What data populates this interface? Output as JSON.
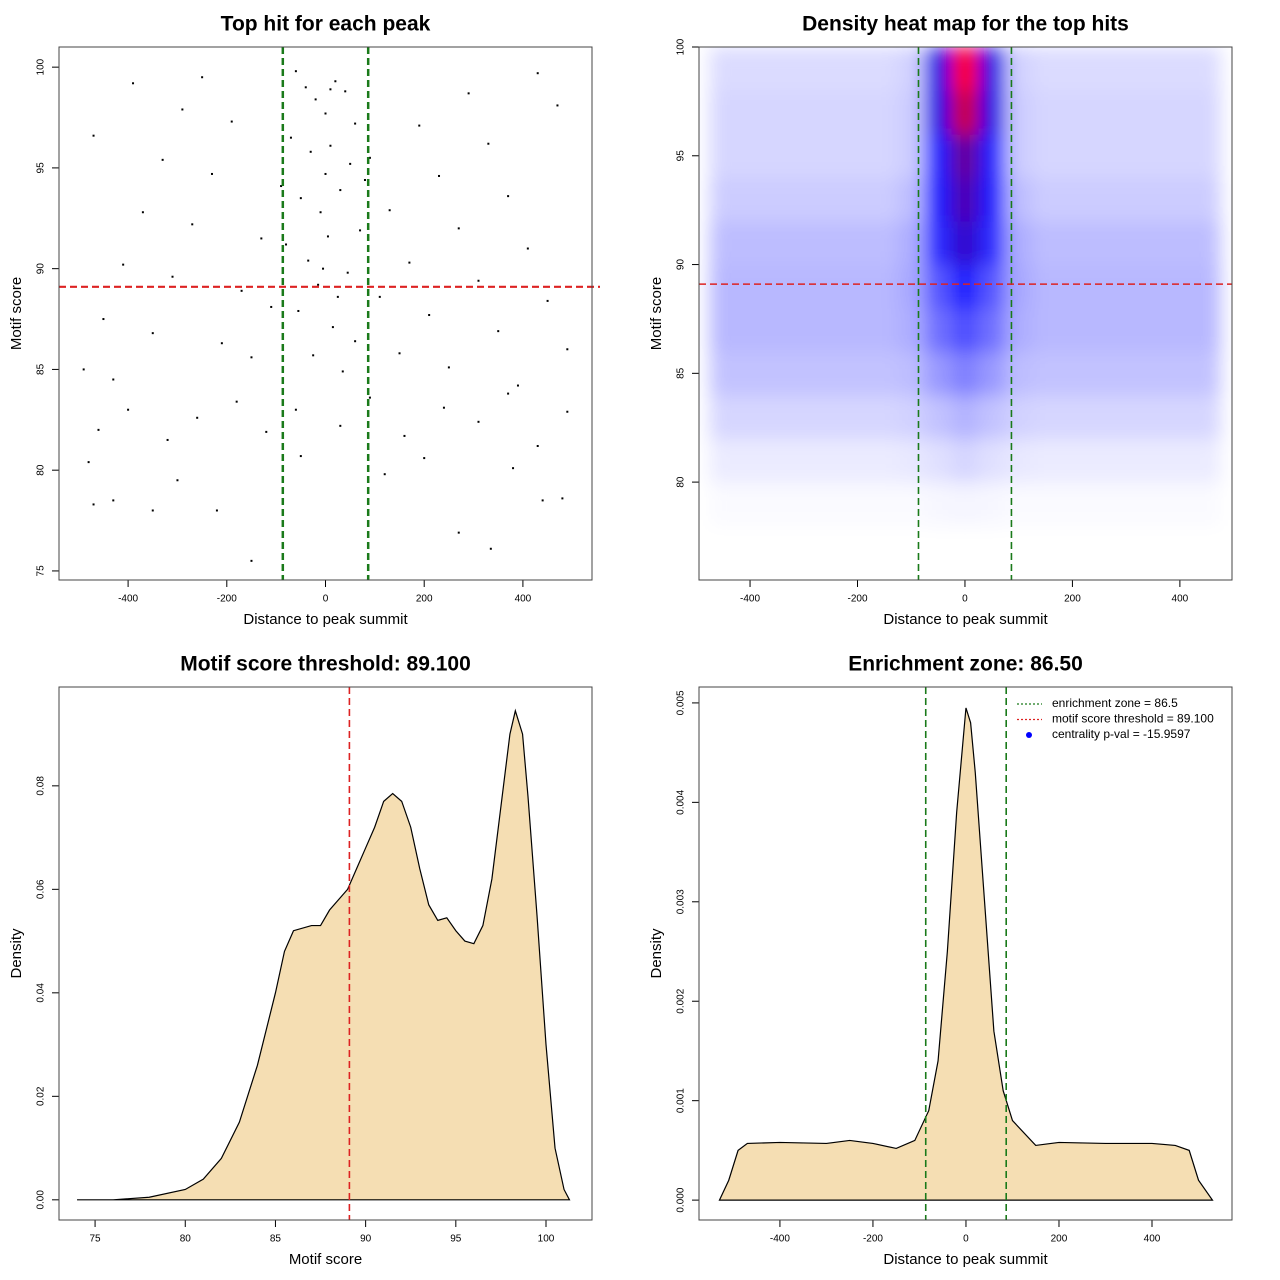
{
  "chart_data": [
    {
      "type": "scatter",
      "title": "Top hit for each peak",
      "xlabel": "Distance to peak summit",
      "ylabel": "Motif score",
      "color": "#000000",
      "x": [
        -470,
        -430,
        -350,
        -220,
        -150,
        270,
        335,
        440,
        480,
        -480,
        -300,
        120,
        380,
        -50,
        200,
        -460,
        -400,
        -320,
        -260,
        -180,
        -120,
        -60,
        30,
        90,
        160,
        240,
        310,
        370,
        430,
        490,
        -490,
        -450,
        -410,
        -370,
        -330,
        -290,
        -250,
        -210,
        -170,
        -130,
        -90,
        -470,
        -430,
        -390,
        -350,
        -310,
        -270,
        -230,
        -190,
        -150,
        -110,
        490,
        450,
        410,
        370,
        330,
        290,
        250,
        210,
        170,
        130,
        90,
        470,
        430,
        390,
        350,
        310,
        270,
        230,
        190,
        150,
        110,
        -60,
        -40,
        -20,
        0,
        20,
        40,
        60,
        -70,
        -30,
        10,
        50,
        80,
        -50,
        -10,
        30,
        70,
        -80,
        -35,
        5,
        45,
        -15,
        25,
        -55,
        15,
        60,
        -25,
        35,
        0,
        -5,
        10
      ],
      "y": [
        78.3,
        78.5,
        78,
        78,
        75.5,
        76.9,
        76.1,
        78.5,
        78.6,
        80.4,
        79.5,
        79.8,
        80.1,
        80.7,
        80.6,
        82,
        83,
        81.5,
        82.6,
        83.4,
        81.9,
        83,
        82.2,
        83.6,
        81.7,
        83.1,
        82.4,
        83.8,
        81.2,
        82.9,
        85,
        87.5,
        90.2,
        92.8,
        95.4,
        97.9,
        99.5,
        86.3,
        88.9,
        91.5,
        94.1,
        96.6,
        84.5,
        99.2,
        86.8,
        89.6,
        92.2,
        94.7,
        97.3,
        85.6,
        88.1,
        86,
        88.4,
        91,
        93.6,
        96.2,
        98.7,
        85.1,
        87.7,
        90.3,
        92.9,
        95.5,
        98.1,
        99.7,
        84.2,
        86.9,
        89.4,
        92,
        94.6,
        97.1,
        85.8,
        88.6,
        99.8,
        99,
        98.4,
        97.7,
        99.3,
        98.8,
        97.2,
        96.5,
        95.8,
        96.1,
        95.2,
        94.4,
        93.5,
        92.8,
        93.9,
        91.9,
        91.2,
        90.4,
        91.6,
        89.8,
        89.2,
        88.6,
        87.9,
        87.1,
        86.4,
        85.7,
        84.9,
        94.7,
        90,
        98.9
      ],
      "xlim": [
        -540,
        540
      ],
      "ylim": [
        74.55,
        101
      ],
      "xticks": [
        -400,
        -200,
        0,
        200,
        400
      ],
      "yticks": [
        75,
        80,
        85,
        90,
        95,
        100
      ],
      "vlines": [
        -86.5,
        86.5
      ],
      "vline_color": "#1a7a1a",
      "hlines": [
        89.1
      ],
      "hline_color": "#dd2222"
    },
    {
      "type": "heatmap",
      "title": "Density heat map for the top hits",
      "xlabel": "Distance to peak summit",
      "ylabel": "Motif score",
      "colorscale": [
        "#ffffff",
        "#0000ff",
        "#ff0000"
      ],
      "x": [
        -450,
        -400,
        -350,
        -300,
        -250,
        -200,
        -150,
        -100,
        -50,
        0,
        50,
        100,
        150,
        200,
        250,
        300,
        350,
        400,
        450
      ],
      "y": [
        77,
        79,
        81,
        83,
        85,
        87,
        89,
        91,
        93,
        95,
        97,
        99
      ],
      "z": [
        [
          0,
          0,
          0,
          0,
          0,
          0,
          0,
          0,
          0,
          0,
          0,
          0,
          0,
          0,
          0,
          0,
          0,
          0,
          0
        ],
        [
          0.01,
          0.01,
          0.01,
          0.01,
          0.01,
          0.01,
          0.01,
          0.01,
          0.015,
          0.02,
          0.015,
          0.01,
          0.01,
          0.01,
          0.01,
          0.01,
          0.01,
          0.01,
          0.01
        ],
        [
          0.04,
          0.04,
          0.04,
          0.04,
          0.04,
          0.04,
          0.04,
          0.045,
          0.06,
          0.08,
          0.06,
          0.045,
          0.04,
          0.04,
          0.04,
          0.04,
          0.04,
          0.04,
          0.04
        ],
        [
          0.08,
          0.08,
          0.08,
          0.08,
          0.08,
          0.08,
          0.08,
          0.09,
          0.12,
          0.15,
          0.12,
          0.09,
          0.08,
          0.08,
          0.08,
          0.08,
          0.08,
          0.08,
          0.08
        ],
        [
          0.12,
          0.12,
          0.12,
          0.12,
          0.12,
          0.12,
          0.12,
          0.13,
          0.2,
          0.25,
          0.2,
          0.13,
          0.12,
          0.12,
          0.12,
          0.12,
          0.12,
          0.12,
          0.12
        ],
        [
          0.14,
          0.14,
          0.14,
          0.14,
          0.14,
          0.14,
          0.14,
          0.16,
          0.28,
          0.35,
          0.28,
          0.16,
          0.14,
          0.14,
          0.14,
          0.14,
          0.14,
          0.14,
          0.14
        ],
        [
          0.14,
          0.14,
          0.14,
          0.14,
          0.14,
          0.14,
          0.14,
          0.17,
          0.33,
          0.45,
          0.33,
          0.17,
          0.14,
          0.14,
          0.14,
          0.14,
          0.14,
          0.14,
          0.14
        ],
        [
          0.13,
          0.13,
          0.13,
          0.13,
          0.13,
          0.13,
          0.13,
          0.16,
          0.42,
          0.6,
          0.42,
          0.16,
          0.13,
          0.13,
          0.13,
          0.13,
          0.13,
          0.13,
          0.13
        ],
        [
          0.1,
          0.1,
          0.1,
          0.1,
          0.1,
          0.1,
          0.1,
          0.13,
          0.45,
          0.65,
          0.45,
          0.13,
          0.1,
          0.1,
          0.1,
          0.1,
          0.1,
          0.1,
          0.1
        ],
        [
          0.08,
          0.08,
          0.08,
          0.08,
          0.08,
          0.08,
          0.08,
          0.1,
          0.45,
          0.7,
          0.45,
          0.1,
          0.08,
          0.08,
          0.08,
          0.08,
          0.08,
          0.08,
          0.08
        ],
        [
          0.08,
          0.08,
          0.08,
          0.08,
          0.08,
          0.08,
          0.08,
          0.1,
          0.55,
          0.9,
          0.55,
          0.1,
          0.08,
          0.08,
          0.08,
          0.08,
          0.08,
          0.08,
          0.08
        ],
        [
          0.07,
          0.07,
          0.07,
          0.07,
          0.07,
          0.07,
          0.07,
          0.09,
          0.55,
          1.0,
          0.55,
          0.09,
          0.07,
          0.07,
          0.07,
          0.07,
          0.07,
          0.07,
          0.07
        ]
      ],
      "xlim": [
        -495,
        497
      ],
      "ylim": [
        75.5,
        100
      ],
      "xticks": [
        -400,
        -200,
        0,
        200,
        400
      ],
      "yticks": [
        80,
        85,
        90,
        95,
        100
      ],
      "vlines": [
        -86.5,
        86.5
      ],
      "vline_color": "#1a7a1a",
      "hlines": [
        89.1
      ],
      "hline_color": "#dd2222"
    },
    {
      "type": "density",
      "title": "Motif score threshold: 89.100",
      "xlabel": "Motif score",
      "ylabel": "Density",
      "color": "#f5deb3",
      "x": [
        74,
        76,
        78,
        80,
        81,
        82,
        83,
        84,
        85,
        85.5,
        86,
        87,
        87.5,
        88,
        89,
        89.5,
        90,
        90.5,
        91,
        91.5,
        92,
        92.5,
        93,
        93.5,
        94,
        94.5,
        95,
        95.5,
        96,
        96.5,
        97,
        97.5,
        98,
        98.3,
        98.7,
        99,
        99.5,
        100,
        100.5,
        101,
        101.3
      ],
      "values": [
        0,
        0,
        0.0005,
        0.002,
        0.004,
        0.008,
        0.015,
        0.026,
        0.04,
        0.048,
        0.052,
        0.053,
        0.053,
        0.056,
        0.06,
        0.064,
        0.068,
        0.072,
        0.077,
        0.0785,
        0.077,
        0.072,
        0.064,
        0.057,
        0.054,
        0.0545,
        0.052,
        0.05,
        0.0495,
        0.053,
        0.062,
        0.076,
        0.09,
        0.0945,
        0.09,
        0.078,
        0.055,
        0.03,
        0.01,
        0.002,
        0
      ],
      "xlim": [
        73,
        102.55
      ],
      "ylim": [
        -0.0039,
        0.0991
      ],
      "xticks": [
        75,
        80,
        85,
        90,
        95,
        100
      ],
      "yticks": [
        {
          "value": 0,
          "label": "0.00"
        },
        {
          "value": 0.02,
          "label": "0.02"
        },
        {
          "value": 0.04,
          "label": "0.04"
        },
        {
          "value": 0.06,
          "label": "0.06"
        },
        {
          "value": 0.08,
          "label": "0.08"
        }
      ],
      "vlines": [
        89.1
      ],
      "vline_color": "#dd2222"
    },
    {
      "type": "density",
      "title": "Enrichment zone: 86.50",
      "xlabel": "Distance to peak summit",
      "ylabel": "Density",
      "color": "#f5deb3",
      "x": [
        -530,
        -510,
        -490,
        -470,
        -400,
        -300,
        -250,
        -200,
        -150,
        -110,
        -80,
        -60,
        -40,
        -20,
        0,
        10,
        20,
        40,
        60,
        80,
        100,
        150,
        200,
        300,
        400,
        450,
        480,
        500,
        530
      ],
      "values": [
        0,
        0.0002,
        0.0005,
        0.00057,
        0.00058,
        0.00057,
        0.0006,
        0.00057,
        0.00052,
        0.0006,
        0.0009,
        0.0014,
        0.0025,
        0.0039,
        0.00495,
        0.0048,
        0.0043,
        0.003,
        0.0017,
        0.0011,
        0.0008,
        0.00055,
        0.00058,
        0.00057,
        0.00057,
        0.00055,
        0.0005,
        0.0002,
        0
      ],
      "xlim": [
        -574,
        572
      ],
      "ylim": [
        -0.0002,
        0.00516
      ],
      "xticks": [
        -400,
        -200,
        0,
        200,
        400
      ],
      "yticks": [
        {
          "value": 0,
          "label": "0.000"
        },
        {
          "value": 0.001,
          "label": "0.001"
        },
        {
          "value": 0.002,
          "label": "0.002"
        },
        {
          "value": 0.003,
          "label": "0.003"
        },
        {
          "value": 0.004,
          "label": "0.004"
        },
        {
          "value": 0.005,
          "label": "0.005"
        }
      ],
      "vlines": [
        -86.5,
        86.5
      ],
      "vline_color": "#1a7a1a",
      "legend_position": "top-right",
      "legend": [
        {
          "label": "enrichment zone = 86.5",
          "color": "#1a7a1a",
          "style": "dotted"
        },
        {
          "label": "motif score threshold = 89.100",
          "color": "#dd2222",
          "style": "dotted"
        },
        {
          "label": "centrality p-val = -15.9597",
          "color": "#0000ff",
          "style": "point"
        }
      ]
    }
  ]
}
